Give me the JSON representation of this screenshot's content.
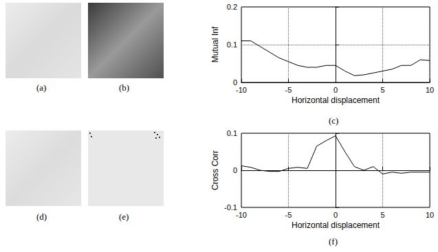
{
  "images": [
    {
      "caption": "(a)"
    },
    {
      "caption": "(b)"
    },
    {
      "caption": "(d)"
    },
    {
      "caption": "(e)"
    }
  ],
  "chart_data": [
    {
      "type": "line",
      "caption": "(c)",
      "xlabel": "Horizontal displacement",
      "ylabel": "Mutual Inf",
      "x": [
        -10,
        -9,
        -8,
        -7,
        -6,
        -5,
        -4,
        -3,
        -2,
        -1,
        0,
        1,
        2,
        3,
        4,
        5,
        6,
        7,
        8,
        9,
        10
      ],
      "values": [
        0.11,
        0.11,
        0.095,
        0.08,
        0.065,
        0.055,
        0.045,
        0.04,
        0.04,
        0.045,
        0.045,
        0.03,
        0.018,
        0.02,
        0.025,
        0.03,
        0.035,
        0.045,
        0.045,
        0.06,
        0.058
      ],
      "color": "#000000",
      "xlim": [
        -10,
        10
      ],
      "xticks": [
        -10,
        -5,
        0,
        5,
        10
      ],
      "ylim": [
        0,
        0.2
      ],
      "yticks": [
        0,
        0.1,
        0.2
      ],
      "grid": true
    },
    {
      "type": "line",
      "caption": "(f)",
      "xlabel": "Horizontal displacement",
      "ylabel": "Cross Corr",
      "x": [
        -10,
        -9,
        -8,
        -7,
        -6,
        -5,
        -4,
        -3,
        -2,
        -1,
        0,
        1,
        2,
        3,
        4,
        5,
        6,
        7,
        8,
        9,
        10
      ],
      "values": [
        0.012,
        0.008,
        0.0,
        -0.003,
        -0.003,
        0.005,
        0.008,
        0.005,
        0.065,
        0.08,
        0.093,
        0.05,
        0.01,
        0.0,
        0.01,
        -0.01,
        -0.005,
        -0.008,
        -0.005,
        -0.005,
        -0.005
      ],
      "color": "#000000",
      "xlim": [
        -10,
        10
      ],
      "xticks": [
        -10,
        -5,
        0,
        5,
        10
      ],
      "ylim": [
        -0.1,
        0.1
      ],
      "yticks": [
        -0.1,
        0,
        0.1
      ],
      "grid": true
    }
  ]
}
